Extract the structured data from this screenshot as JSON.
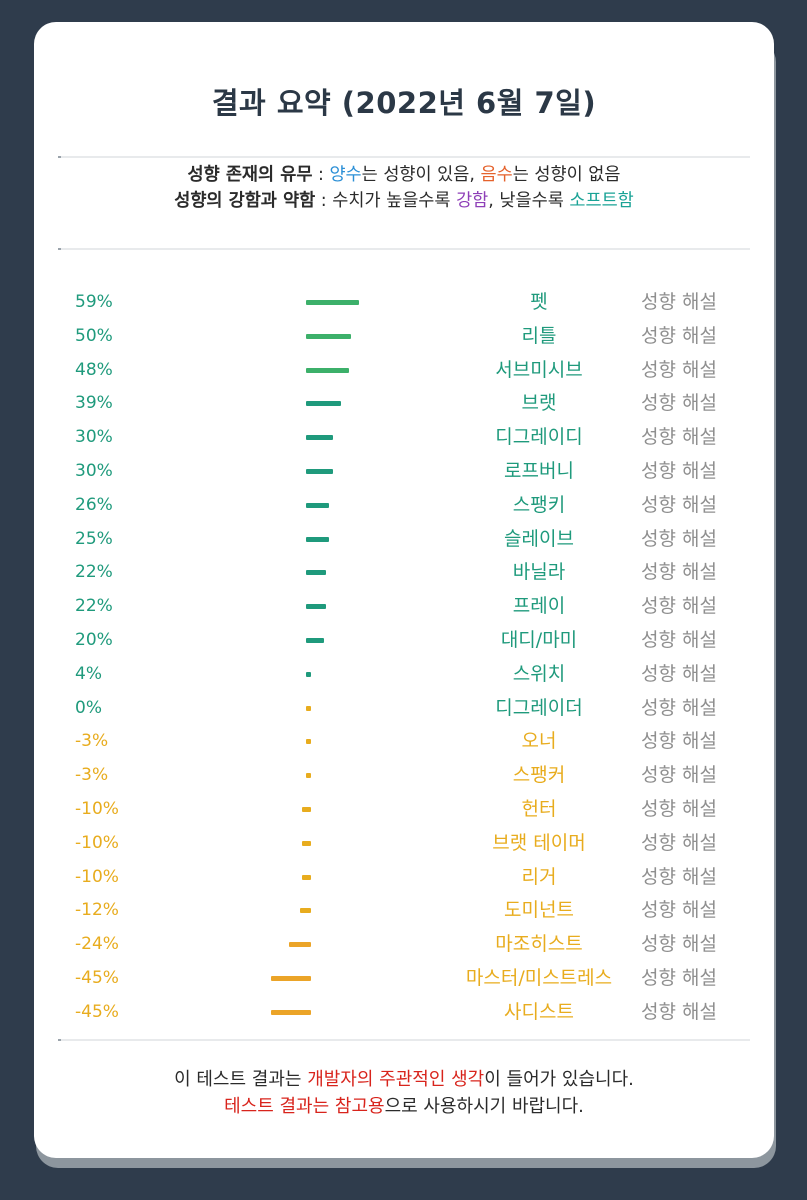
{
  "title": "결과 요약 (2022년 6월 7일)",
  "legend": {
    "line1": {
      "label": "성향 존재의 유무",
      "sep": " : ",
      "positive_word": "양수",
      "positive_text": "는 성향이 있음, ",
      "negative_word": "음수",
      "negative_text": "는 성향이 없음"
    },
    "line2": {
      "label": "성향의 강함과 약함",
      "sep": " : ",
      "text1": "수치가 높을수록 ",
      "strong_word": "강함",
      "text2": ", 낮을수록 ",
      "soft_word": "소프트함"
    }
  },
  "colors": {
    "positive_strong": "#3cb06a",
    "positive": "#1f9a7c",
    "negative": "#e8ac1e",
    "negative_strong": "#eba428"
  },
  "results": [
    {
      "value": 59,
      "label": "59%",
      "name": "펫",
      "action": "성향 해설"
    },
    {
      "value": 50,
      "label": "50%",
      "name": "리틀",
      "action": "성향 해설"
    },
    {
      "value": 48,
      "label": "48%",
      "name": "서브미시브",
      "action": "성향 해설"
    },
    {
      "value": 39,
      "label": "39%",
      "name": "브랫",
      "action": "성향 해설"
    },
    {
      "value": 30,
      "label": "30%",
      "name": "디그레이디",
      "action": "성향 해설"
    },
    {
      "value": 30,
      "label": "30%",
      "name": "로프버니",
      "action": "성향 해설"
    },
    {
      "value": 26,
      "label": "26%",
      "name": "스팽키",
      "action": "성향 해설"
    },
    {
      "value": 25,
      "label": "25%",
      "name": "슬레이브",
      "action": "성향 해설"
    },
    {
      "value": 22,
      "label": "22%",
      "name": "바닐라",
      "action": "성향 해설"
    },
    {
      "value": 22,
      "label": "22%",
      "name": "프레이",
      "action": "성향 해설"
    },
    {
      "value": 20,
      "label": "20%",
      "name": "대디/마미",
      "action": "성향 해설"
    },
    {
      "value": 4,
      "label": "4%",
      "name": "스위치",
      "action": "성향 해설"
    },
    {
      "value": 0,
      "label": "0%",
      "name": "디그레이더",
      "action": "성향 해설"
    },
    {
      "value": -3,
      "label": "-3%",
      "name": "오너",
      "action": "성향 해설"
    },
    {
      "value": -3,
      "label": "-3%",
      "name": "스팽커",
      "action": "성향 해설"
    },
    {
      "value": -10,
      "label": "-10%",
      "name": "헌터",
      "action": "성향 해설"
    },
    {
      "value": -10,
      "label": "-10%",
      "name": "브랫 테이머",
      "action": "성향 해설"
    },
    {
      "value": -10,
      "label": "-10%",
      "name": "리거",
      "action": "성향 해설"
    },
    {
      "value": -12,
      "label": "-12%",
      "name": "도미넌트",
      "action": "성향 해설"
    },
    {
      "value": -24,
      "label": "-24%",
      "name": "마조히스트",
      "action": "성향 해설"
    },
    {
      "value": -45,
      "label": "-45%",
      "name": "마스터/미스트레스",
      "action": "성향 해설"
    },
    {
      "value": -45,
      "label": "-45%",
      "name": "사디스트",
      "action": "성향 해설"
    }
  ],
  "footer": {
    "line1_a": "이 테스트 결과는 ",
    "line1_b": "개발자의 주관적인 생각",
    "line1_c": "이 들어가 있습니다.",
    "line2_a": "테스트 결과는 참고용",
    "line2_b": "으로 사용하시기 바랍니다."
  }
}
